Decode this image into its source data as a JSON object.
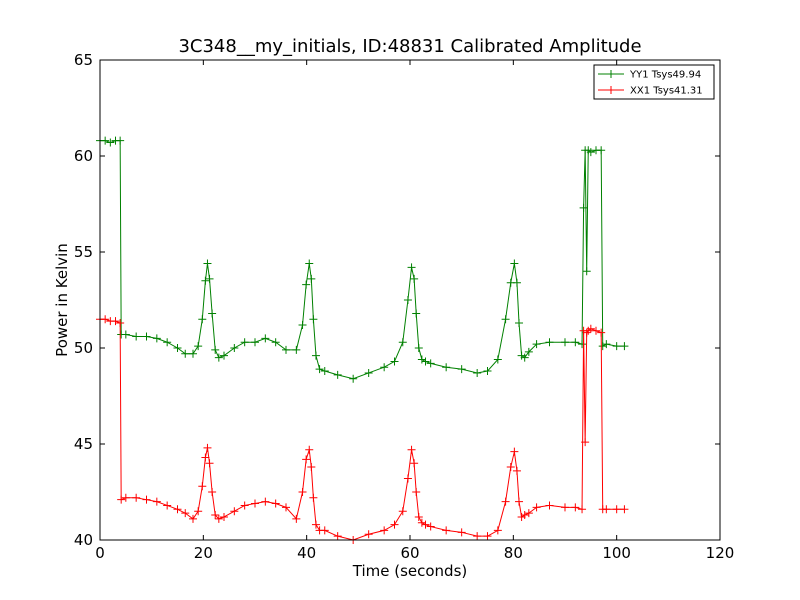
{
  "chart_data": {
    "type": "line",
    "title": "3C348__my_initials, ID:48831 Calibrated Amplitude",
    "xlabel": "Time (seconds)",
    "ylabel": "Power in Kelvin",
    "xlim": [
      0,
      120
    ],
    "ylim": [
      40,
      65
    ],
    "xticks": [
      0,
      20,
      40,
      60,
      80,
      100,
      120
    ],
    "yticks": [
      40,
      45,
      50,
      55,
      60,
      65
    ],
    "grid": false,
    "legend": "top-right",
    "series": [
      {
        "name": "YY1 Tsys49.94",
        "color": "#008000",
        "marker": "+",
        "x": [
          0,
          1,
          2,
          3,
          3.9,
          4.1,
          5,
          7,
          9,
          11,
          13,
          15,
          16.5,
          18,
          19,
          19.8,
          20.4,
          20.8,
          21.2,
          21.7,
          22.3,
          23,
          24,
          26,
          28,
          30,
          32,
          34,
          36,
          38,
          39.2,
          39.9,
          40.5,
          40.9,
          41.3,
          41.8,
          42.5,
          43.5,
          46,
          49,
          52,
          55,
          57,
          58.6,
          59.6,
          60.3,
          60.8,
          61.2,
          61.7,
          62.3,
          63,
          64,
          67,
          70,
          73,
          75,
          77,
          78.5,
          79.5,
          80.2,
          80.7,
          81.1,
          81.6,
          82.2,
          83,
          84.5,
          87,
          90,
          92,
          93.3,
          93.6,
          93.9,
          94.2,
          94.5,
          95,
          96,
          97,
          97.3,
          98,
          100,
          101.5
        ],
        "y": [
          60.8,
          60.8,
          60.7,
          60.8,
          60.8,
          50.7,
          50.7,
          50.6,
          50.6,
          50.5,
          50.3,
          50.0,
          49.7,
          49.7,
          50.1,
          51.5,
          53.5,
          54.4,
          53.6,
          51.8,
          49.9,
          49.5,
          49.6,
          50.0,
          50.3,
          50.3,
          50.5,
          50.3,
          49.9,
          49.9,
          51.2,
          53.3,
          54.4,
          53.6,
          51.5,
          49.6,
          48.9,
          48.8,
          48.6,
          48.4,
          48.7,
          49.0,
          49.3,
          50.3,
          52.5,
          54.2,
          53.6,
          51.8,
          50.0,
          49.4,
          49.3,
          49.2,
          49.0,
          48.9,
          48.7,
          48.8,
          49.4,
          51.5,
          53.4,
          54.4,
          53.4,
          51.3,
          49.6,
          49.5,
          49.8,
          50.2,
          50.3,
          50.3,
          50.3,
          50.2,
          57.3,
          60.3,
          54.0,
          60.3,
          60.2,
          60.3,
          60.3,
          50.1,
          50.2,
          50.1,
          50.1
        ]
      },
      {
        "name": "XX1 Tsys41.31",
        "color": "#ff0000",
        "marker": "+",
        "x": [
          0,
          1,
          2,
          3,
          3.9,
          4.1,
          5,
          7,
          9,
          11,
          13,
          15,
          16.5,
          18,
          19,
          19.8,
          20.4,
          20.8,
          21.2,
          21.7,
          22.3,
          23,
          24,
          26,
          28,
          30,
          32,
          34,
          36,
          38,
          39.2,
          39.9,
          40.5,
          40.9,
          41.3,
          41.8,
          42.5,
          43.5,
          46,
          49,
          52,
          55,
          57,
          58.6,
          59.6,
          60.3,
          60.8,
          61.2,
          61.7,
          62.3,
          63,
          64,
          67,
          70,
          73,
          75,
          77,
          78.5,
          79.5,
          80.2,
          80.7,
          81.1,
          81.6,
          82.2,
          83,
          84.5,
          87,
          90,
          92,
          93.3,
          93.6,
          93.9,
          94.2,
          94.5,
          95,
          96,
          97,
          97.3,
          98,
          100,
          101.5
        ],
        "y": [
          51.5,
          51.5,
          51.4,
          51.4,
          51.3,
          42.1,
          42.2,
          42.2,
          42.1,
          42.0,
          41.8,
          41.6,
          41.4,
          41.1,
          41.5,
          42.8,
          44.3,
          44.8,
          44.0,
          42.5,
          41.3,
          41.1,
          41.2,
          41.5,
          41.8,
          41.9,
          42.0,
          41.9,
          41.7,
          41.1,
          42.5,
          44.2,
          44.7,
          43.8,
          42.2,
          40.8,
          40.5,
          40.5,
          40.2,
          40.0,
          40.3,
          40.5,
          40.8,
          41.5,
          43.2,
          44.7,
          44.0,
          42.5,
          41.2,
          40.9,
          40.8,
          40.7,
          40.5,
          40.4,
          40.2,
          40.2,
          40.5,
          42.0,
          43.8,
          44.6,
          43.6,
          42.0,
          41.2,
          41.3,
          41.4,
          41.7,
          41.8,
          41.7,
          41.7,
          41.6,
          50.9,
          45.1,
          50.8,
          50.9,
          51.0,
          50.9,
          50.8,
          41.6,
          41.6,
          41.6,
          41.6
        ]
      }
    ]
  }
}
